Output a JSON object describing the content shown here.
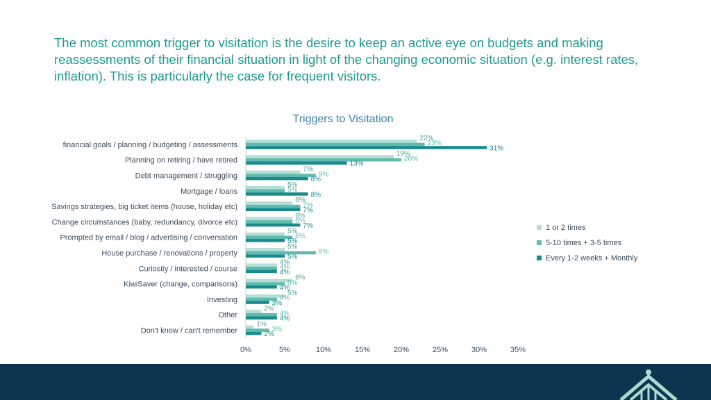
{
  "headline": "The most common trigger to visitation is the desire to keep an active eye on budgets and making reassessments of their financial situation in light of the changing economic situation (e.g. interest rates, inflation). This is particularly the case for frequent visitors.",
  "colors": {
    "s1": "#b5ded6",
    "s2": "#5fbbae",
    "s3": "#1b8a8c",
    "headline": "#1e9a8c",
    "footer": "#0c3650"
  },
  "chart_data": {
    "type": "bar",
    "orientation": "horizontal",
    "title": "Triggers to Visitation",
    "categories": [
      "financial goals / planning / budgeting / assessments",
      "Planning on retiring / have retired",
      "Debt management / struggling",
      "Mortgage / loans",
      "Savings strategies, big ticket items (house, holiday etc)",
      "Change circumstances (baby, redundancy, divorce etc)",
      "Prompted by email / blog / advertising / conversation",
      "House purchase / renovations / property",
      "Curiosity / interested / course",
      "KiwiSaver (change, comparisons)",
      "Investing",
      "Other",
      "Don't know / can't remember"
    ],
    "series": [
      {
        "name": "1 or 2 times",
        "color": "#b5ded6",
        "values": [
          22,
          19,
          7,
          5,
          6,
          6,
          5,
          5,
          4,
          6,
          5,
          2,
          1
        ]
      },
      {
        "name": "5-10 times + 3-5 times",
        "color": "#5fbbae",
        "values": [
          23,
          20,
          9,
          5,
          7,
          6,
          6,
          9,
          4,
          5,
          4,
          4,
          3
        ]
      },
      {
        "name": "Every 1-2 weeks + Monthly",
        "color": "#1b8a8c",
        "values": [
          31,
          13,
          8,
          8,
          7,
          7,
          5,
          5,
          4,
          4,
          3,
          4,
          2
        ]
      }
    ],
    "xlim": [
      0,
      35
    ],
    "xticks": [
      "0%",
      "5%",
      "10%",
      "15%",
      "20%",
      "25%",
      "30%",
      "35%"
    ],
    "legend_position": "right",
    "grid": false
  }
}
